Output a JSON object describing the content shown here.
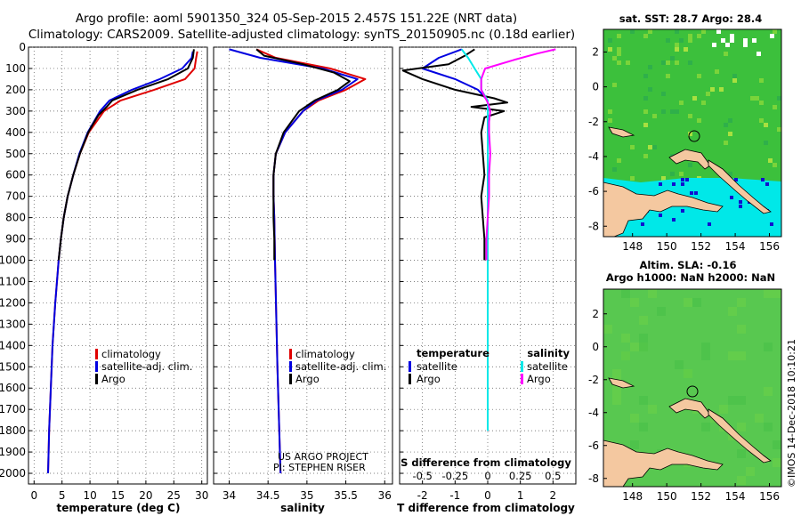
{
  "header": {
    "line1": "Argo profile: aoml 5901350_324 05-Sep-2015 2.457S 151.22E (NRT data)",
    "line2": "Climatology: CARS2009. Satellite-adjusted climatology: synTS_20150905.nc (0.18d earlier)"
  },
  "side_label": "©IMOS 14-Dec-2018 10:10:21",
  "credits": {
    "line1": "US ARGO PROJECT",
    "line2": "PI: STEPHEN RISER"
  },
  "depth_ticks": [
    "0",
    "100",
    "200",
    "300",
    "400",
    "500",
    "600",
    "700",
    "800",
    "900",
    "1000",
    "1100",
    "1200",
    "1300",
    "1400",
    "1500",
    "1600",
    "1700",
    "1800",
    "1900",
    "2000"
  ],
  "colors": {
    "climatology": "#e00000",
    "satellite": "#0000e0",
    "argo": "#000000",
    "sat_salinity": "#00e8e8",
    "argo_salinity": "#ff00ff",
    "land": "#f4c8a0",
    "sea": "#3cc03c"
  },
  "legend_left": {
    "items": [
      "climatology",
      "satellite-adj. clim.",
      "Argo"
    ]
  },
  "legend_right": {
    "col1_title": "temperature",
    "col2_title": "salinity",
    "col1_items": [
      "satellite",
      "Argo"
    ],
    "col2_items": [
      "satellite",
      "Argo"
    ]
  },
  "chart_data": [
    {
      "type": "line",
      "title": "",
      "xlabel": "temperature (deg C)",
      "ylabel": "",
      "xlim": [
        -1,
        31
      ],
      "ylim": [
        2050,
        0
      ],
      "xticks": [
        "0",
        "5",
        "10",
        "15",
        "20",
        "25",
        "30"
      ],
      "series": [
        {
          "name": "climatology",
          "depth": [
            20,
            50,
            100,
            150,
            200,
            250,
            300,
            400,
            500,
            600,
            700,
            800,
            900,
            1000,
            1200,
            1400,
            1600,
            1800,
            2000
          ],
          "values": [
            29.2,
            29.0,
            28.7,
            27.0,
            21.5,
            15.5,
            12.5,
            9.8,
            8.2,
            7.0,
            6.0,
            5.3,
            4.8,
            4.4,
            3.8,
            3.3,
            3.0,
            2.7,
            2.5
          ]
        },
        {
          "name": "satellite-adj. clim.",
          "depth": [
            20,
            50,
            100,
            150,
            200,
            250,
            300,
            400,
            500,
            600,
            700,
            800,
            900,
            1000,
            1200,
            1400,
            1600,
            1800,
            2000
          ],
          "values": [
            28.4,
            28.2,
            26.5,
            22.5,
            17.5,
            13.5,
            11.8,
            9.6,
            8.1,
            7.0,
            6.0,
            5.3,
            4.8,
            4.4,
            3.8,
            3.3,
            3.0,
            2.7,
            2.5
          ]
        },
        {
          "name": "Argo",
          "depth": [
            10,
            50,
            100,
            150,
            200,
            250,
            280,
            320,
            350,
            400,
            500,
            600,
            700,
            800,
            900,
            1000
          ],
          "values": [
            28.6,
            28.4,
            27.5,
            24.0,
            18.5,
            14.0,
            13.0,
            11.5,
            10.8,
            9.7,
            8.2,
            7.0,
            6.0,
            5.3,
            4.8,
            4.4
          ]
        }
      ]
    },
    {
      "type": "line",
      "title": "",
      "xlabel": "salinity",
      "ylabel": "",
      "xlim": [
        33.8,
        36.1
      ],
      "ylim": [
        2050,
        0
      ],
      "xticks": [
        "34",
        "34.5",
        "35",
        "35.5",
        "36"
      ],
      "series": [
        {
          "name": "climatology",
          "depth": [
            10,
            50,
            100,
            150,
            200,
            250,
            300,
            400,
            500,
            600,
            700,
            800,
            1000,
            1500,
            2000
          ],
          "values": [
            34.35,
            34.6,
            35.3,
            35.75,
            35.5,
            35.15,
            34.95,
            34.72,
            34.6,
            34.57,
            34.57,
            34.58,
            34.59,
            34.62,
            34.66
          ]
        },
        {
          "name": "satellite-adj. clim.",
          "depth": [
            10,
            50,
            100,
            150,
            200,
            250,
            300,
            400,
            500,
            600,
            700,
            800,
            1000,
            1500,
            2000
          ],
          "values": [
            34.0,
            34.4,
            35.2,
            35.65,
            35.45,
            35.12,
            34.95,
            34.72,
            34.6,
            34.57,
            34.57,
            34.58,
            34.59,
            34.62,
            34.66
          ]
        },
        {
          "name": "Argo",
          "depth": [
            10,
            40,
            80,
            120,
            160,
            200,
            250,
            300,
            400,
            500,
            600,
            700,
            800,
            900,
            1000
          ],
          "values": [
            34.35,
            34.45,
            34.95,
            35.35,
            35.55,
            35.4,
            35.1,
            34.9,
            34.7,
            34.6,
            34.57,
            34.57,
            34.57,
            34.58,
            34.58
          ]
        }
      ]
    },
    {
      "type": "line",
      "title": "",
      "xlabel": "T difference from climatology",
      "ylabel": "",
      "secondary_xlabel": "S difference from climatology",
      "xlim": [
        -2.7,
        2.7
      ],
      "ylim": [
        2050,
        0
      ],
      "xticks": [
        "-2",
        "-1",
        "0",
        "1",
        "2"
      ],
      "secondary_xticks": [
        "-0.5",
        "-0.25",
        "0",
        "0.25",
        "0.5"
      ],
      "series": [
        {
          "name": "temperature satellite",
          "depth": [
            10,
            50,
            100,
            150,
            200,
            250,
            300,
            400,
            600,
            800,
            1000,
            1500,
            1800
          ],
          "values": [
            -0.8,
            -1.5,
            -2.0,
            -1.0,
            -0.3,
            0,
            0,
            0,
            0,
            0,
            0,
            0,
            0
          ]
        },
        {
          "name": "temperature Argo",
          "depth": [
            10,
            40,
            80,
            110,
            150,
            200,
            240,
            260,
            280,
            300,
            330,
            400,
            500,
            600,
            700,
            800,
            900,
            1000
          ],
          "values": [
            -0.4,
            -0.7,
            -1.2,
            -2.6,
            -2.0,
            -1.0,
            0.2,
            0.6,
            -0.5,
            0.5,
            -0.1,
            -0.2,
            -0.15,
            -0.1,
            -0.2,
            -0.15,
            -0.1,
            -0.1
          ]
        },
        {
          "name": "salinity satellite",
          "depth": [
            10,
            50,
            100,
            150,
            200,
            250,
            300,
            400,
            600,
            800,
            1000,
            1500,
            1800
          ],
          "values": [
            -0.2,
            -0.15,
            -0.1,
            -0.05,
            -0.05,
            0,
            0,
            0,
            0,
            0,
            0,
            0,
            0
          ]
        },
        {
          "name": "salinity Argo",
          "depth": [
            10,
            30,
            60,
            100,
            150,
            200,
            260,
            300,
            350,
            400,
            500,
            600,
            700,
            800,
            900,
            1000
          ],
          "values": [
            0.52,
            0.38,
            0.2,
            -0.02,
            -0.05,
            -0.05,
            0.0,
            0.02,
            0.01,
            0.01,
            0.02,
            0.01,
            0.01,
            0.0,
            -0.01,
            -0.01
          ]
        }
      ]
    },
    {
      "type": "heatmap",
      "title": "sat. SST: 28.7  Argo: 28.4",
      "xticks": [
        "148",
        "150",
        "152",
        "154",
        "156"
      ],
      "yticks": [
        "2",
        "0",
        "-2",
        "-4",
        "-6",
        "-8"
      ]
    },
    {
      "type": "heatmap",
      "title": "Altim. SLA: -0.16",
      "subtitle": "Argo h1000: NaN h2000: NaN",
      "xticks": [
        "148",
        "150",
        "152",
        "154",
        "156"
      ],
      "yticks": [
        "2",
        "0",
        "-2",
        "-4",
        "-6",
        "-8"
      ]
    }
  ]
}
